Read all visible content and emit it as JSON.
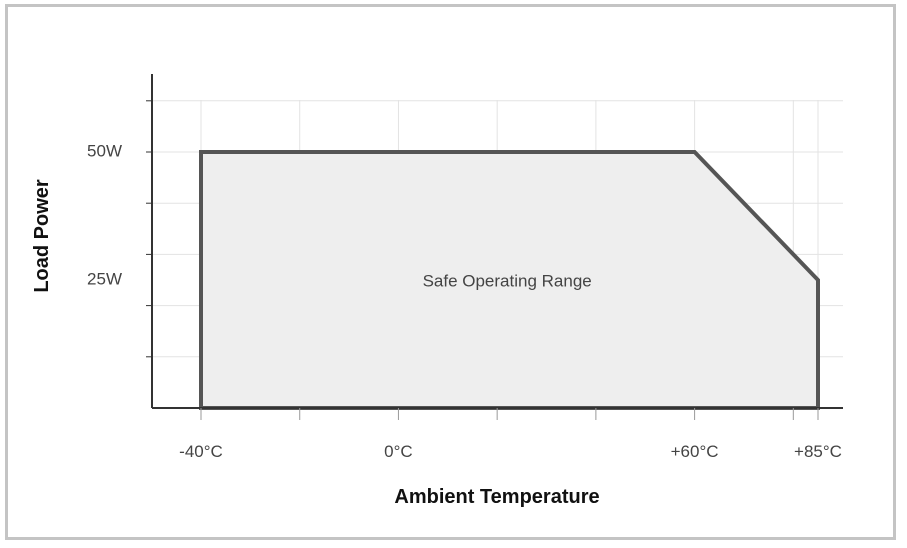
{
  "chart_data": {
    "type": "area",
    "title": "",
    "xlabel": "Ambient Temperature",
    "ylabel": "Load Power",
    "x_unit": "°C",
    "y_unit": "W",
    "xlim": [
      -40,
      85
    ],
    "ylim": [
      0,
      62.5
    ],
    "grid": true,
    "x_ticks": [
      {
        "value": -40,
        "label": "-40°C"
      },
      {
        "value": 0,
        "label": "0°C"
      },
      {
        "value": 60,
        "label": "+60°C"
      },
      {
        "value": 85,
        "label": "+85°C"
      }
    ],
    "y_ticks": [
      {
        "value": 50,
        "label": "50W"
      },
      {
        "value": 25,
        "label": "25W"
      }
    ],
    "series": [
      {
        "x": [
          -40,
          -40,
          60,
          85,
          85
        ],
        "y": [
          0,
          50,
          50,
          25,
          0
        ]
      }
    ],
    "annotations": [
      {
        "text": "Safe Operating Range",
        "x": 20,
        "y": 25
      }
    ],
    "colors": {
      "outline": "#555555",
      "fill": "#eeeeee",
      "grid": "#e3e3e3",
      "axis": "#333333"
    }
  }
}
